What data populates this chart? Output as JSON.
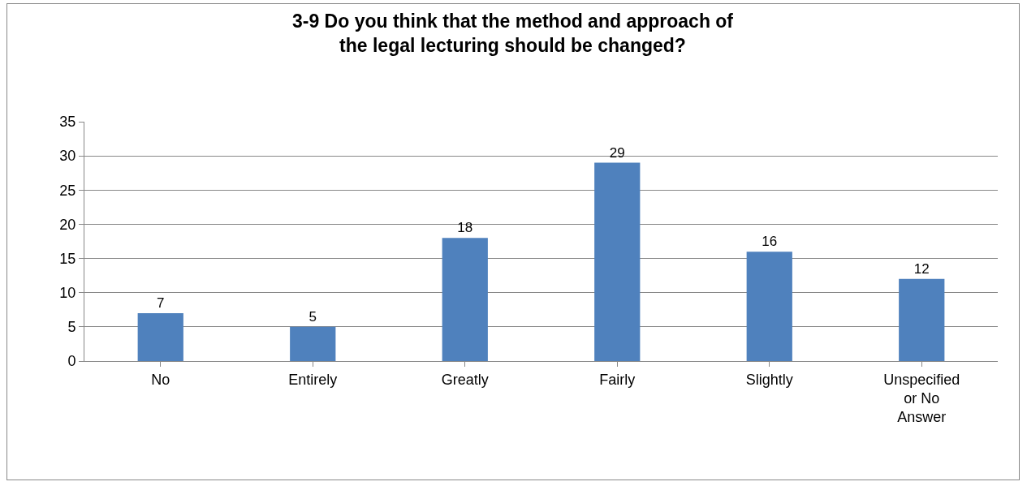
{
  "chart_data": {
    "type": "bar",
    "title": "3-9 Do you think that the method and approach of\nthe legal lecturing should be changed?",
    "categories": [
      "No",
      "Entirely",
      "Greatly",
      "Fairly",
      "Slightly",
      "Unspecified\nor No\nAnswer"
    ],
    "values": [
      7,
      5,
      18,
      29,
      16,
      12
    ],
    "color": "#4f81bd",
    "ylim": [
      0,
      35
    ],
    "yticks": [
      0,
      5,
      10,
      15,
      20,
      25,
      30,
      35
    ],
    "grid": "y",
    "data_labels": true
  }
}
